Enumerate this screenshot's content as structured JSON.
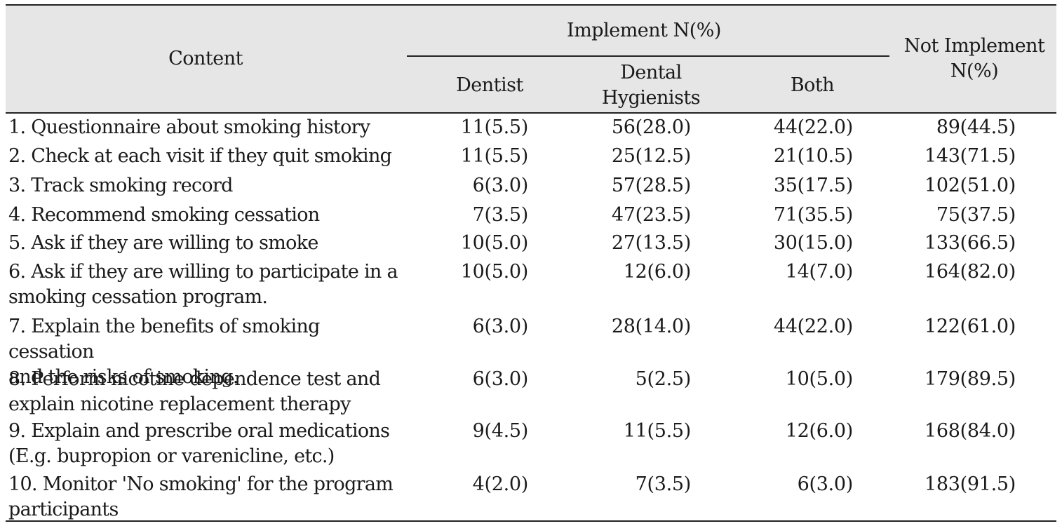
{
  "table": {
    "headers": {
      "content": "Content",
      "implement": "Implement N(%)",
      "dentist": "Dentist",
      "dental_hygienists": "Dental\nHygienists",
      "both": "Both",
      "not_implement": "Not Implement\nN(%)"
    },
    "rows": [
      {
        "content": "1. Questionnaire about smoking history",
        "dentist": "11(5.5)",
        "hygienists": "56(28.0)",
        "both": "44(22.0)",
        "not_implement": "89(44.5)"
      },
      {
        "content": "2. Check at each visit if they quit smoking",
        "dentist": "11(5.5)",
        "hygienists": "25(12.5)",
        "both": "21(10.5)",
        "not_implement": "143(71.5)"
      },
      {
        "content": "3. Track smoking record",
        "dentist": "6(3.0)",
        "hygienists": "57(28.5)",
        "both": "35(17.5)",
        "not_implement": "102(51.0)"
      },
      {
        "content": "4. Recommend smoking cessation",
        "dentist": "7(3.5)",
        "hygienists": "47(23.5)",
        "both": "71(35.5)",
        "not_implement": "75(37.5)"
      },
      {
        "content": "5. Ask if they are willing to smoke",
        "dentist": "10(5.0)",
        "hygienists": "27(13.5)",
        "both": "30(15.0)",
        "not_implement": "133(66.5)"
      },
      {
        "content": "6. Ask if they are willing to participate in a\n   smoking cessation program.",
        "dentist": "10(5.0)",
        "hygienists": "12(6.0)",
        "both": "14(7.0)",
        "not_implement": "164(82.0)"
      },
      {
        "content": "7. Explain the benefits of smoking cessation\n   and the risks of smoking.",
        "dentist": "6(3.0)",
        "hygienists": "28(14.0)",
        "both": "44(22.0)",
        "not_implement": "122(61.0)"
      },
      {
        "content": "8. Perform nicotine dependence test and\n   explain nicotine replacement therapy",
        "dentist": "6(3.0)",
        "hygienists": "5(2.5)",
        "both": "10(5.0)",
        "not_implement": "179(89.5)"
      },
      {
        "content": "9. Explain and prescribe oral medications\n   (E.g. bupropion or varenicline, etc.)",
        "dentist": "9(4.5)",
        "hygienists": "11(5.5)",
        "both": "12(6.0)",
        "not_implement": "168(84.0)"
      },
      {
        "content": "10. Monitor 'No smoking' for the program\n    participants",
        "dentist": "4(2.0)",
        "hygienists": "7(3.5)",
        "both": "6(3.0)",
        "not_implement": "183(91.5)"
      }
    ]
  }
}
